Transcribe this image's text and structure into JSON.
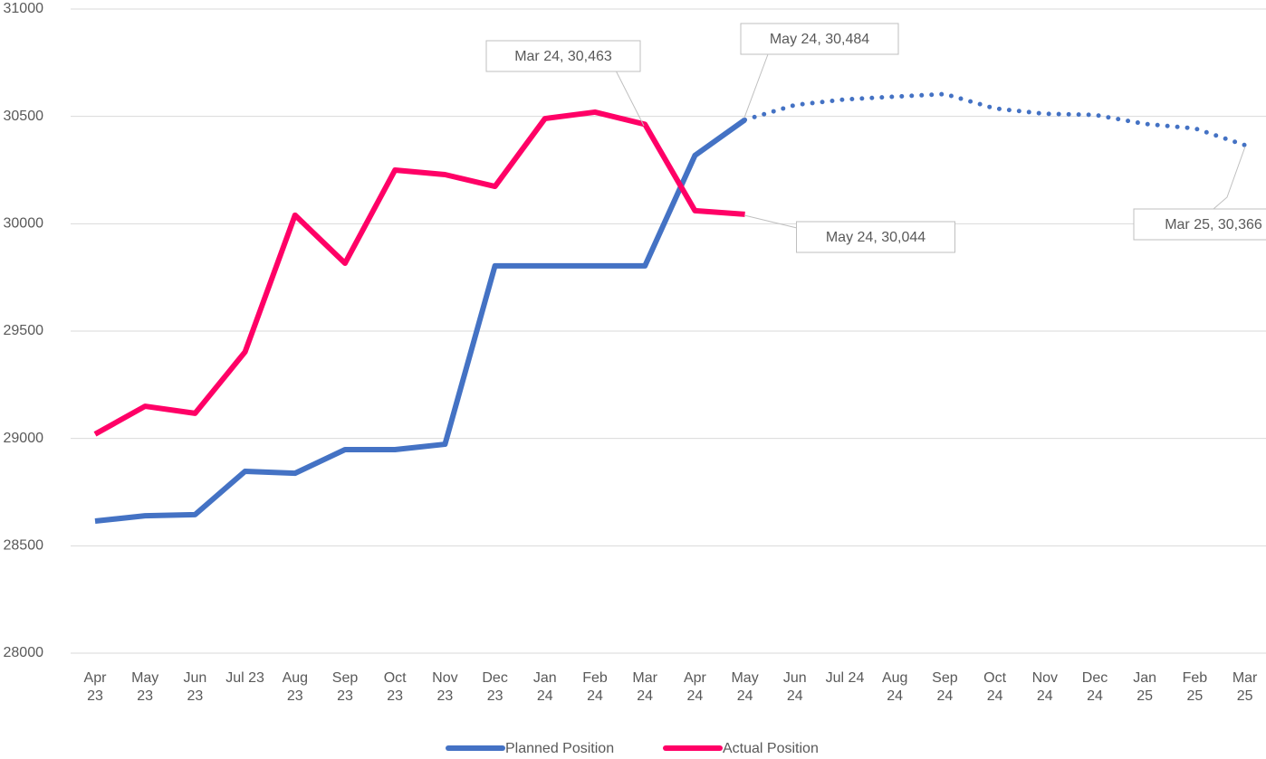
{
  "chart_data": {
    "type": "line",
    "categories": [
      "Apr 23",
      "May 23",
      "Jun 23",
      "Jul 23",
      "Aug 23",
      "Sep 23",
      "Oct 23",
      "Nov 23",
      "Dec 23",
      "Jan 24",
      "Feb 24",
      "Mar 24",
      "Apr 24",
      "May 24",
      "Jun 24",
      "Jul 24",
      "Aug 24",
      "Sep 24",
      "Oct 24",
      "Nov 24",
      "Dec 24",
      "Jan 25",
      "Feb 25",
      "Mar 25"
    ],
    "series": [
      {
        "name": "Planned Position",
        "color": "#4472c4",
        "dotted_after": "May 24",
        "values": [
          28615,
          28640,
          28645,
          28847,
          28838,
          28948,
          28948,
          28973,
          29804,
          29804,
          29804,
          29804,
          30318,
          30484,
          30553,
          30579,
          30592,
          30604,
          30537,
          30512,
          30507,
          30465,
          30444,
          30366
        ],
        "value_labels": [
          null,
          null,
          null,
          null,
          null,
          null,
          null,
          null,
          null,
          null,
          null,
          null,
          null,
          "May 24, 30,484",
          null,
          null,
          null,
          null,
          null,
          null,
          null,
          null,
          null,
          "Mar 25, 30,366"
        ]
      },
      {
        "name": "Actual Position",
        "color": "#ff0066",
        "values": [
          29020,
          29150,
          29117,
          29403,
          30040,
          29816,
          30250,
          30229,
          30174,
          30490,
          30520,
          30463,
          30061,
          30044,
          null,
          null,
          null,
          null,
          null,
          null,
          null,
          null,
          null,
          null
        ],
        "value_labels": [
          null,
          null,
          null,
          null,
          null,
          null,
          null,
          null,
          null,
          null,
          null,
          "Mar 24, 30,463",
          null,
          "May 24, 30,044",
          null,
          null,
          null,
          null,
          null,
          null,
          null,
          null,
          null,
          null
        ]
      }
    ],
    "ylim": [
      28000,
      31000
    ],
    "yticks": [
      28000,
      28500,
      29000,
      29500,
      30000,
      30500,
      31000
    ],
    "grid": true,
    "legend": "bottom"
  }
}
